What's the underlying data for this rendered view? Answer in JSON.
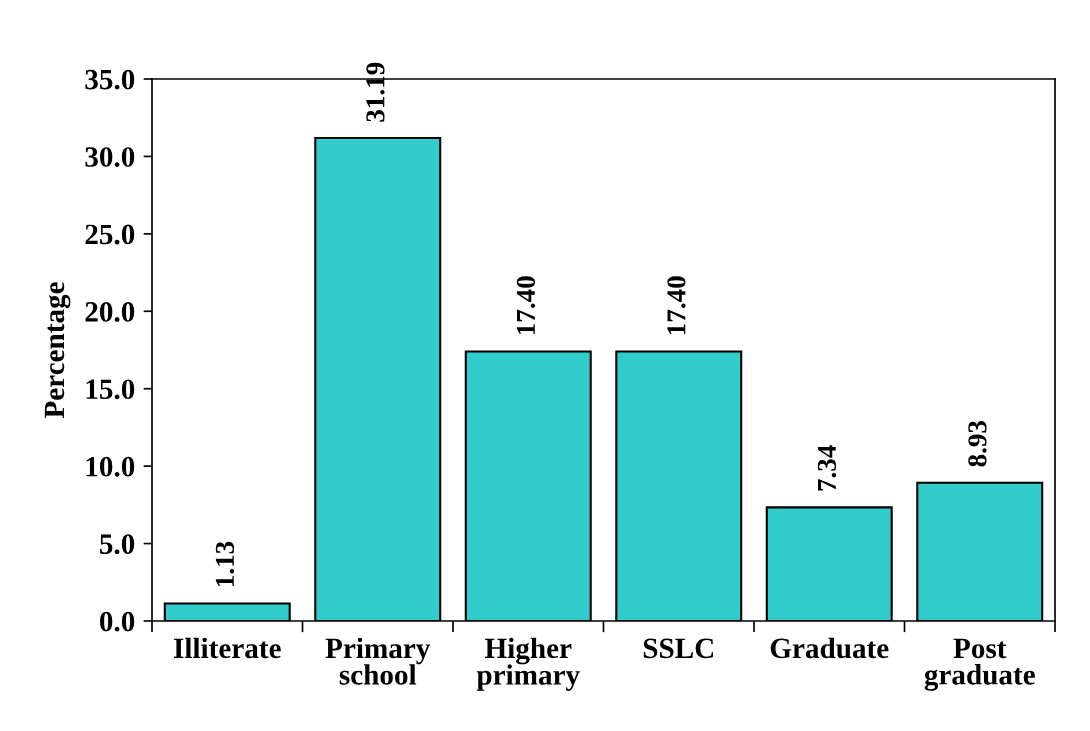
{
  "chart_data": {
    "type": "bar",
    "ylabel": "Percentage",
    "categories": [
      "Illiterate",
      "Primary\nschool",
      "Higher\nprimary",
      "SSLC",
      "Graduate",
      "Post\ngraduate"
    ],
    "values": [
      1.13,
      31.19,
      17.4,
      17.4,
      7.34,
      8.93
    ],
    "value_labels": [
      "1.13",
      "31.19",
      "17.40",
      "17.40",
      "7.34",
      "8.93"
    ],
    "color": "#33cccc",
    "ylim": [
      0,
      35
    ],
    "yticks": [
      {
        "value": 0,
        "label": "0.0"
      },
      {
        "value": 5,
        "label": "5.0"
      },
      {
        "value": 10,
        "label": "10.0"
      },
      {
        "value": 15,
        "label": "15.0"
      },
      {
        "value": 20,
        "label": "20.0"
      },
      {
        "value": 25,
        "label": "25.0"
      },
      {
        "value": 30,
        "label": "30.0"
      },
      {
        "value": 35,
        "label": "35.0"
      }
    ]
  }
}
